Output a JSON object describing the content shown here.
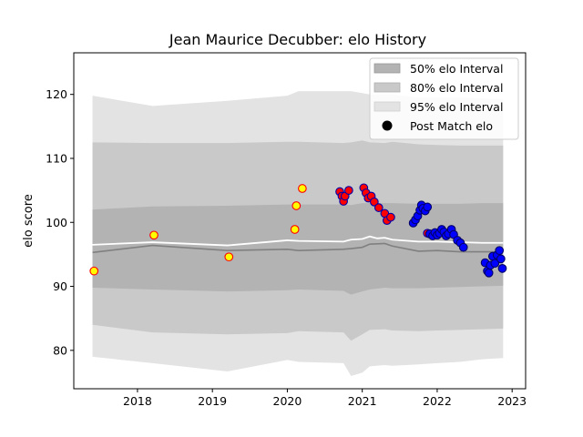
{
  "chart_data": {
    "type": "scatter",
    "title": "Jean Maurice Decubber: elo History",
    "xlabel": "",
    "ylabel": "elo score",
    "xlim": [
      2017.15,
      2023.18
    ],
    "ylim": [
      74,
      126.5
    ],
    "xticks": [
      2018,
      2019,
      2020,
      2021,
      2022,
      2023
    ],
    "xtick_labels": [
      "2018",
      "2019",
      "2020",
      "2021",
      "2022",
      "2023"
    ],
    "yticks": [
      80,
      90,
      100,
      110,
      120
    ],
    "ytick_labels": [
      "80",
      "90",
      "100",
      "110",
      "120"
    ],
    "grid": false,
    "legend_position": "upper-right",
    "legend": [
      {
        "label": "50% elo Interval",
        "kind": "band",
        "color": "#b3b3b3"
      },
      {
        "label": "80% elo Interval",
        "kind": "band",
        "color": "#c9c9c9"
      },
      {
        "label": "95% elo Interval",
        "kind": "band",
        "color": "#e3e3e3"
      },
      {
        "label": "Post Match elo",
        "kind": "marker",
        "color": "#000000"
      }
    ],
    "bands": {
      "x": [
        2017.4,
        2018.2,
        2019.2,
        2020.0,
        2020.15,
        2020.75,
        2020.85,
        2021.0,
        2021.1,
        2021.3,
        2021.4,
        2021.75,
        2022.0,
        2022.3,
        2022.6,
        2022.88
      ],
      "band95_upper": [
        119.8,
        118.2,
        119.0,
        119.8,
        120.5,
        120.5,
        120.5,
        120.2,
        120.0,
        120.0,
        120.0,
        119.5,
        119.5,
        119.5,
        119.4,
        119.3
      ],
      "band95_lower": [
        79.0,
        78.0,
        76.7,
        78.5,
        78.2,
        78.0,
        76.0,
        76.5,
        77.5,
        77.7,
        77.6,
        77.8,
        78.0,
        78.2,
        78.6,
        78.8
      ],
      "band80_upper": [
        112.5,
        112.4,
        112.4,
        112.6,
        112.6,
        112.4,
        112.5,
        112.8,
        112.5,
        112.4,
        112.6,
        112.2,
        112.1,
        112.0,
        112.0,
        112.0
      ],
      "band80_lower": [
        84.0,
        82.8,
        82.5,
        82.7,
        83.0,
        82.8,
        81.5,
        82.5,
        83.2,
        83.3,
        83.1,
        83.0,
        83.1,
        83.2,
        83.3,
        83.4
      ],
      "band50_upper": [
        102.0,
        102.5,
        102.6,
        102.8,
        102.8,
        102.8,
        102.7,
        103.0,
        103.0,
        103.0,
        103.0,
        102.9,
        102.9,
        102.9,
        103.0,
        103.0
      ],
      "band50_lower": [
        89.8,
        89.5,
        89.2,
        89.4,
        89.5,
        89.3,
        88.7,
        89.2,
        89.5,
        89.8,
        89.7,
        89.7,
        89.8,
        89.9,
        90.0,
        90.1
      ]
    },
    "mean_line": {
      "color": "#ffffff",
      "x": [
        2017.4,
        2018.2,
        2019.2,
        2020.0,
        2020.15,
        2020.75,
        2020.85,
        2021.0,
        2021.1,
        2021.2,
        2021.3,
        2021.4,
        2021.75,
        2022.0,
        2022.3,
        2022.6,
        2022.88
      ],
      "y": [
        96.5,
        96.9,
        96.4,
        97.2,
        97.1,
        97.0,
        97.3,
        97.4,
        97.8,
        97.5,
        97.6,
        97.3,
        97.0,
        97.0,
        96.9,
        96.8,
        96.8
      ]
    },
    "median_line": {
      "color": "#808080",
      "x": [
        2017.4,
        2018.2,
        2019.2,
        2020.0,
        2020.15,
        2020.75,
        2020.85,
        2021.0,
        2021.1,
        2021.3,
        2021.4,
        2021.75,
        2022.0,
        2022.3,
        2022.6,
        2022.88
      ],
      "y": [
        95.3,
        96.4,
        95.6,
        95.8,
        95.6,
        95.8,
        95.9,
        96.1,
        96.6,
        96.7,
        96.3,
        95.5,
        95.6,
        95.4,
        95.4,
        95.4
      ]
    },
    "series": [
      {
        "name": "Post Match elo",
        "fill": "#ffff00",
        "edge": "#ff0000",
        "x": [
          2017.42,
          2018.22,
          2019.22,
          2020.1,
          2020.12,
          2020.2
        ],
        "y": [
          92.4,
          98.0,
          94.6,
          98.9,
          102.6,
          105.3
        ]
      },
      {
        "name": "Post Match elo",
        "fill": "#ff0000",
        "edge": "#0000aa",
        "x": [
          2020.7,
          2020.73,
          2020.75,
          2020.77,
          2020.82,
          2021.02,
          2021.05,
          2021.08,
          2021.12,
          2021.16,
          2021.22,
          2021.3,
          2021.33,
          2021.38,
          2021.87
        ],
        "y": [
          104.8,
          104.1,
          103.3,
          104.1,
          105.0,
          105.4,
          104.6,
          103.8,
          104.1,
          103.2,
          102.3,
          101.4,
          100.3,
          100.8,
          98.3
        ]
      },
      {
        "name": "Post Match elo",
        "fill": "#0000ff",
        "edge": "#000066",
        "x": [
          2021.68,
          2021.71,
          2021.74,
          2021.77,
          2021.79,
          2021.81,
          2021.84,
          2021.87,
          2021.9,
          2021.94,
          2021.97,
          2022.0,
          2022.03,
          2022.06,
          2022.09,
          2022.12,
          2022.15,
          2022.19,
          2022.22,
          2022.27,
          2022.31,
          2022.35,
          2022.64,
          2022.67,
          2022.69,
          2022.71,
          2022.74,
          2022.77,
          2022.8,
          2022.83,
          2022.85,
          2022.87
        ],
        "y": [
          99.9,
          100.4,
          101.0,
          101.9,
          102.7,
          102.2,
          101.8,
          102.4,
          98.2,
          97.9,
          98.4,
          98.0,
          98.3,
          98.9,
          98.5,
          97.9,
          98.2,
          98.9,
          98.1,
          97.2,
          96.8,
          96.1,
          93.7,
          92.4,
          92.1,
          93.3,
          94.7,
          93.6,
          94.9,
          95.6,
          94.3,
          92.8
        ]
      }
    ]
  }
}
